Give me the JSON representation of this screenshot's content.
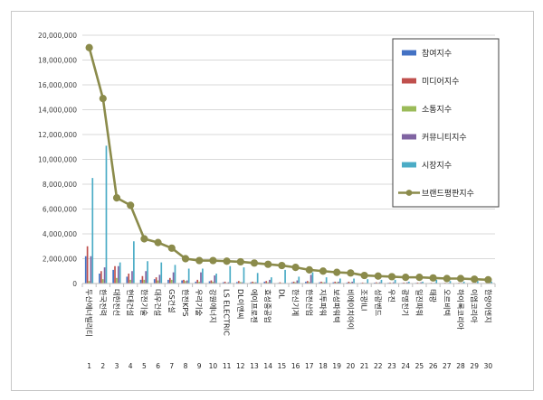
{
  "chart_data": {
    "type": "bar",
    "title": "",
    "xlabel": "",
    "ylabel": "",
    "ylim": [
      0,
      20000000
    ],
    "ytick_labels": [
      "0",
      "2,000,000",
      "4,000,000",
      "6,000,000",
      "8,000,000",
      "10,000,000",
      "12,000,000",
      "14,000,000",
      "16,000,000",
      "18,000,000",
      "20,000,000"
    ],
    "grid": true,
    "legend_position": "top-right",
    "categories": [
      "두산에너빌리티",
      "한국전력",
      "대한전선",
      "현대건설",
      "한전기술",
      "대우건설",
      "GS건설",
      "한전KPS",
      "우리기술",
      "강원에너지",
      "LS ELECTRIC",
      "DL이앤씨",
      "에이프로젠",
      "효성중공업",
      "DL",
      "한신기계",
      "한전산업",
      "지투파워",
      "보성파워텍",
      "비에이치아이",
      "조광ILI",
      "성광벤드",
      "우진",
      "광명전기",
      "일진파워",
      "태광",
      "오르비텍",
      "하이록코리아",
      "이엠코리아",
      "한양이엔지"
    ],
    "ranks": [
      "1",
      "2",
      "3",
      "4",
      "5",
      "6",
      "7",
      "8",
      "9",
      "10",
      "11",
      "12",
      "13",
      "14",
      "15",
      "16",
      "17",
      "18",
      "19",
      "20",
      "21",
      "22",
      "23",
      "24",
      "25",
      "26",
      "27",
      "28",
      "29",
      "30"
    ],
    "series": [
      {
        "name": "참여지수",
        "color": "#4472c4",
        "values": [
          2200000,
          800000,
          1100000,
          550000,
          300000,
          350000,
          300000,
          250000,
          150000,
          180000,
          100000,
          120000,
          100000,
          150000,
          50000,
          100000,
          150000,
          100000,
          100000,
          80000,
          50000,
          70000,
          60000,
          50000,
          50000,
          40000,
          40000,
          40000,
          30000,
          30000
        ]
      },
      {
        "name": "미디어지수",
        "color": "#c0504d",
        "values": [
          3000000,
          1000000,
          1400000,
          800000,
          600000,
          500000,
          450000,
          300000,
          300000,
          250000,
          150000,
          200000,
          150000,
          200000,
          100000,
          150000,
          200000,
          150000,
          150000,
          150000,
          80000,
          100000,
          80000,
          80000,
          80000,
          60000,
          60000,
          60000,
          50000,
          50000
        ]
      },
      {
        "name": "소통지수",
        "color": "#9bbb59",
        "values": [
          200000,
          350000,
          450000,
          300000,
          300000,
          250000,
          300000,
          200000,
          150000,
          150000,
          50000,
          120000,
          100000,
          100000,
          50000,
          100000,
          120000,
          100000,
          100000,
          80000,
          50000,
          60000,
          50000,
          50000,
          50000,
          40000,
          40000,
          30000,
          30000,
          30000
        ]
      },
      {
        "name": "커뮤니티지수",
        "color": "#8064a2",
        "values": [
          2200000,
          1300000,
          1400000,
          1000000,
          1000000,
          700000,
          900000,
          250000,
          900000,
          650000,
          100000,
          100000,
          100000,
          300000,
          50000,
          250000,
          700000,
          100000,
          150000,
          150000,
          50000,
          100000,
          100000,
          100000,
          100000,
          50000,
          50000,
          50000,
          50000,
          50000
        ]
      },
      {
        "name": "시장지수",
        "color": "#4bacc6",
        "values": [
          8500000,
          11100000,
          1700000,
          3400000,
          1800000,
          1700000,
          1500000,
          1200000,
          1200000,
          800000,
          1400000,
          1300000,
          850000,
          500000,
          1100000,
          550000,
          900000,
          500000,
          400000,
          400000,
          350000,
          300000,
          300000,
          150000,
          150000,
          300000,
          200000,
          150000,
          200000,
          150000
        ]
      },
      {
        "name": "브랜드평판지수",
        "color": "#8b8b4b",
        "values": [
          19000000,
          14900000,
          6900000,
          6300000,
          3600000,
          3300000,
          2850000,
          2000000,
          1850000,
          1850000,
          1800000,
          1750000,
          1650000,
          1550000,
          1450000,
          1300000,
          1100000,
          1000000,
          900000,
          850000,
          650000,
          600000,
          550000,
          500000,
          500000,
          450000,
          400000,
          400000,
          350000,
          300000
        ]
      }
    ]
  }
}
